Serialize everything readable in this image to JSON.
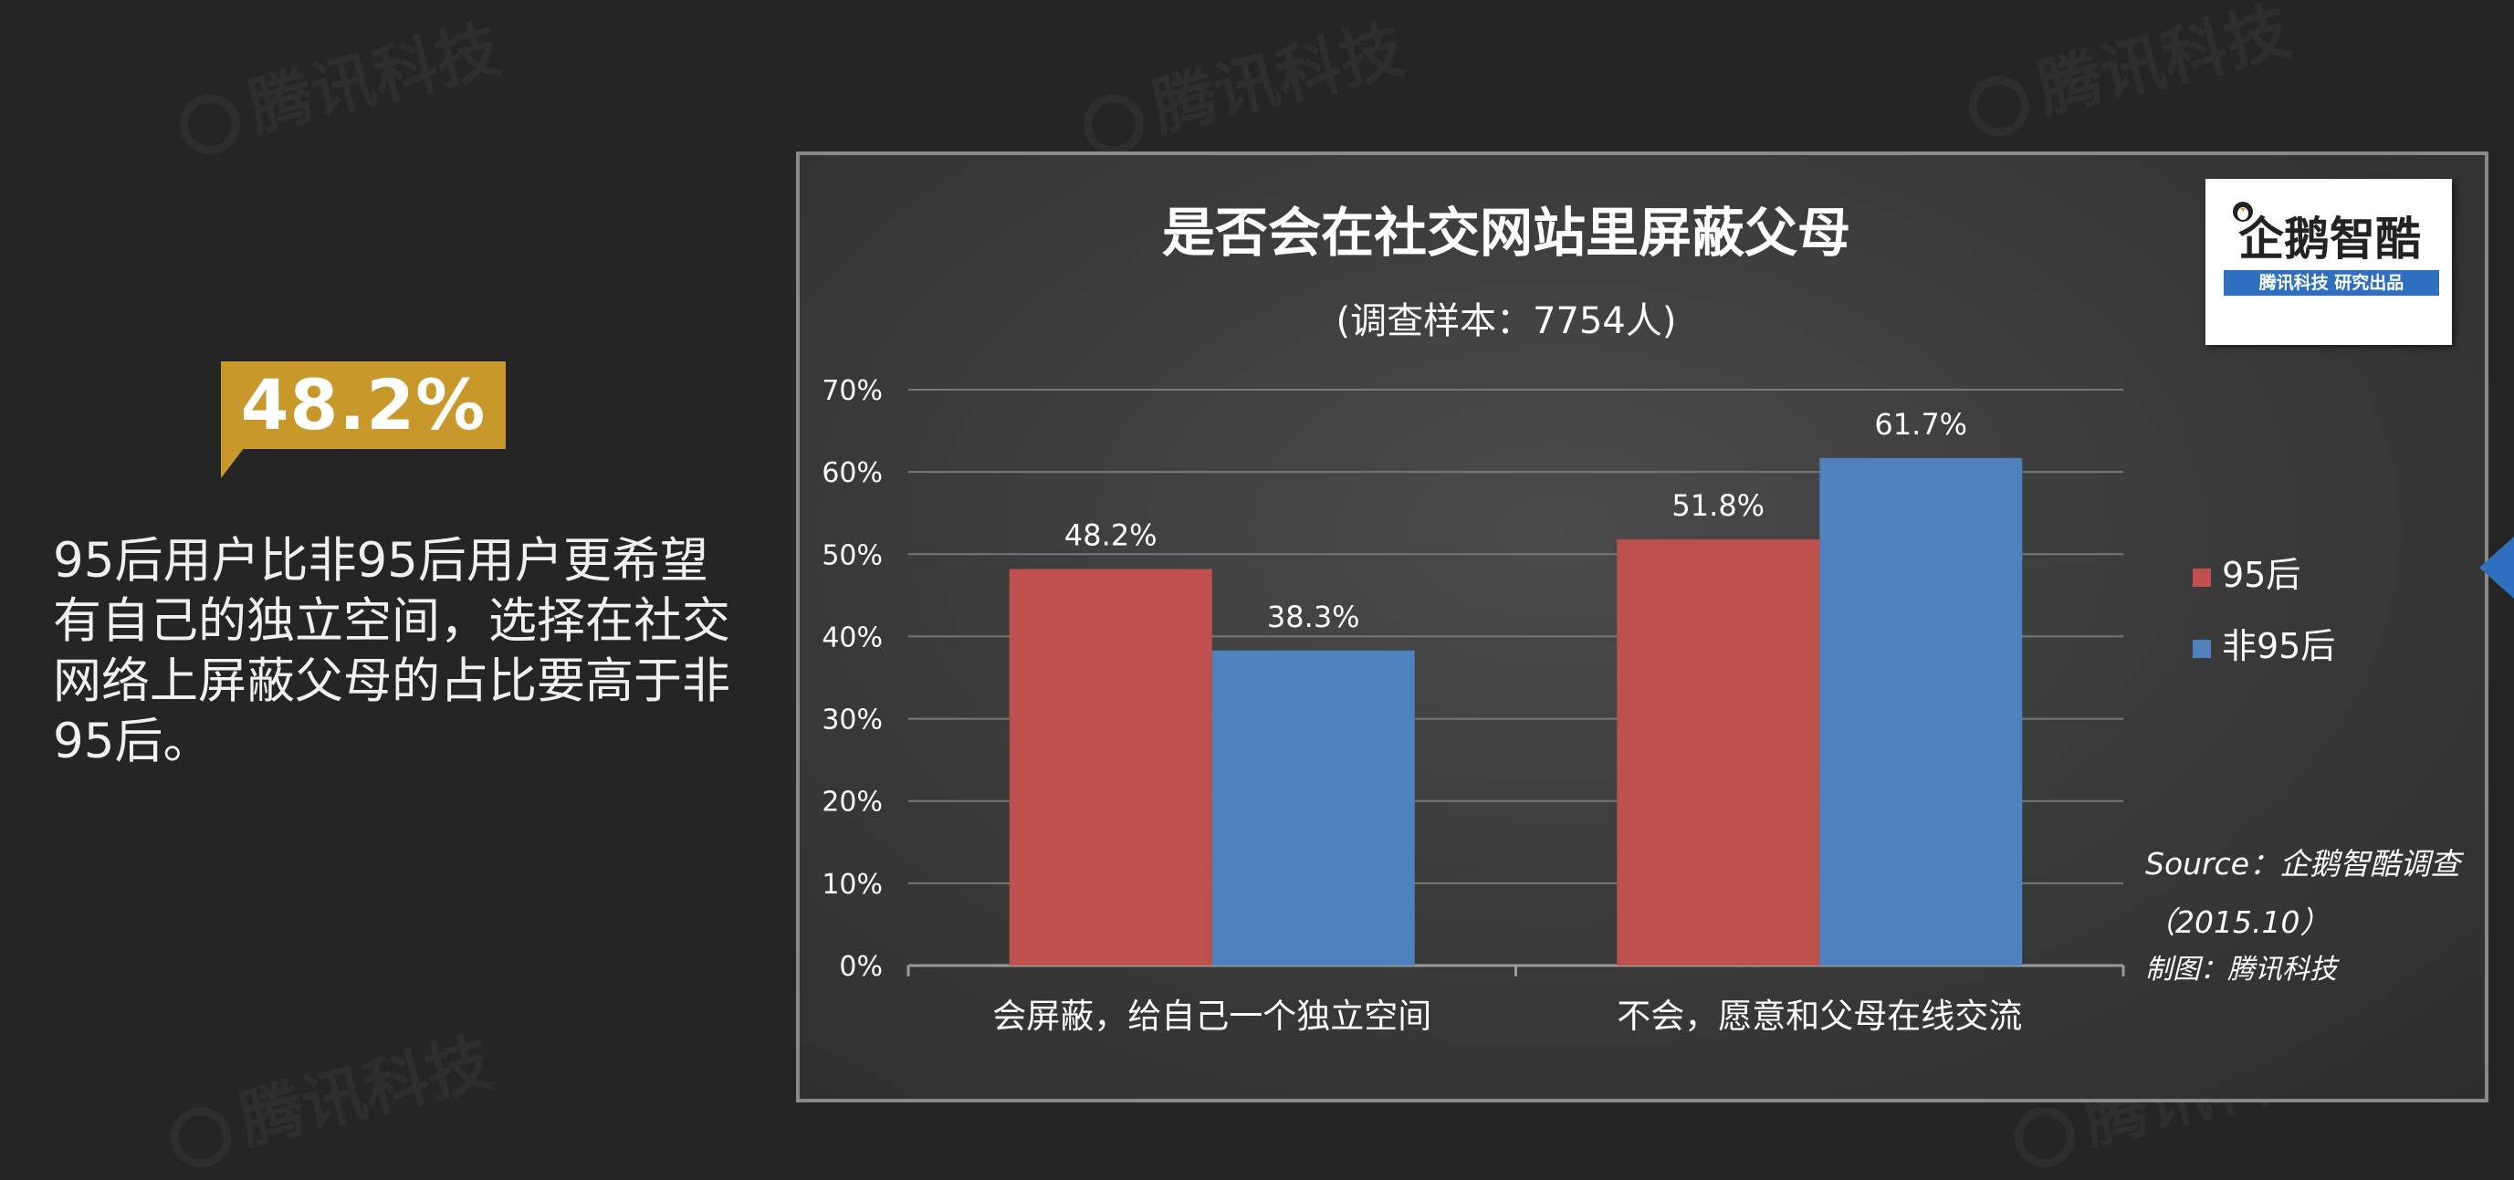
{
  "callout": {
    "badge": "48.2%",
    "description": "95后用户比非95后用户更希望有自己的独立空间，选择在社交网络上屏蔽父母的占比要高于非95后。"
  },
  "logo": {
    "name": "企鹅智酷",
    "tagline": "腾讯科技 研究出品",
    "icon": "penguin-icon"
  },
  "watermark": "腾讯科技",
  "source": {
    "line1": "Source：企鹅智酷调查",
    "line2": "（2015.10）",
    "line3": "制图：腾讯科技"
  },
  "colors": {
    "series_95": "#c0504d",
    "series_non95": "#4f81bd",
    "badge": "#c8992a",
    "accent": "#2f6fc0"
  },
  "chart_data": {
    "type": "bar",
    "title": "是否会在社交网站里屏蔽父母",
    "subtitle": "(调查样本：7754人)",
    "categories": [
      "会屏蔽，给自己一个独立空间",
      "不会，愿意和父母在线交流"
    ],
    "series": [
      {
        "name": "95后",
        "values": [
          48.2,
          51.8
        ],
        "labels": [
          "48.2%",
          "51.8%"
        ],
        "color": "#c0504d"
      },
      {
        "name": "非95后",
        "values": [
          38.3,
          61.7
        ],
        "labels": [
          "38.3%",
          "61.7%"
        ],
        "color": "#4f81bd"
      }
    ],
    "y_ticks": [
      "0%",
      "10%",
      "20%",
      "30%",
      "40%",
      "50%",
      "60%",
      "70%"
    ],
    "ylim": [
      0,
      70
    ],
    "grid": true,
    "legend_position": "right"
  }
}
